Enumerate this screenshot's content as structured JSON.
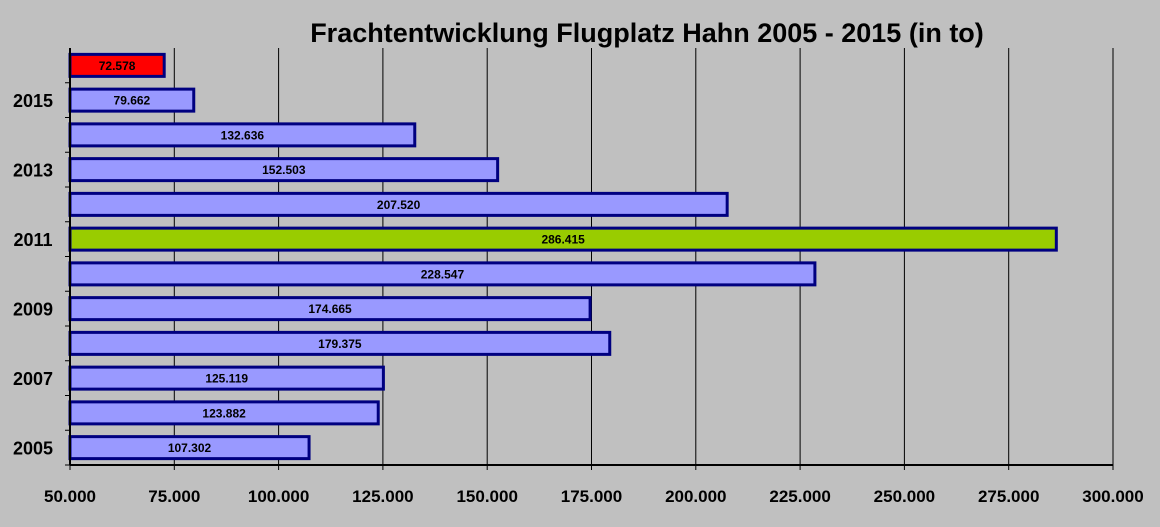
{
  "chart_data": {
    "type": "bar",
    "orientation": "horizontal",
    "title": "Frachtentwicklung Flugplatz Hahn 2005 - 2015 (in to)",
    "xlabel": "",
    "ylabel": "",
    "category_labels": [
      "2005",
      "",
      "2007",
      "",
      "2009",
      "",
      "2011",
      "",
      "2013",
      "",
      "2015",
      ""
    ],
    "values": [
      107302,
      123882,
      125119,
      179375,
      174665,
      228547,
      286415,
      207520,
      152503,
      132636,
      79662,
      72578
    ],
    "data_labels": [
      "107.302",
      "123.882",
      "125.119",
      "179.375",
      "174.665",
      "228.547",
      "286.415",
      "207.520",
      "152.503",
      "132.636",
      "79.662",
      "72.578"
    ],
    "bar_colors": [
      "#9999ff",
      "#9999ff",
      "#9999ff",
      "#9999ff",
      "#9999ff",
      "#9999ff",
      "#99cc00",
      "#9999ff",
      "#9999ff",
      "#9999ff",
      "#9999ff",
      "#ff0000"
    ],
    "bar_border_color": "#000080",
    "background_color": "#c0c0c0",
    "xlim": [
      50000,
      300000
    ],
    "x_ticks": [
      50000,
      75000,
      100000,
      125000,
      150000,
      175000,
      200000,
      225000,
      250000,
      275000,
      300000
    ],
    "x_tick_labels": [
      "50.000",
      "75.000",
      "100.000",
      "125.000",
      "150.000",
      "175.000",
      "200.000",
      "225.000",
      "250.000",
      "275.000",
      "300.000"
    ],
    "grid": "vertical",
    "legend": "none"
  }
}
